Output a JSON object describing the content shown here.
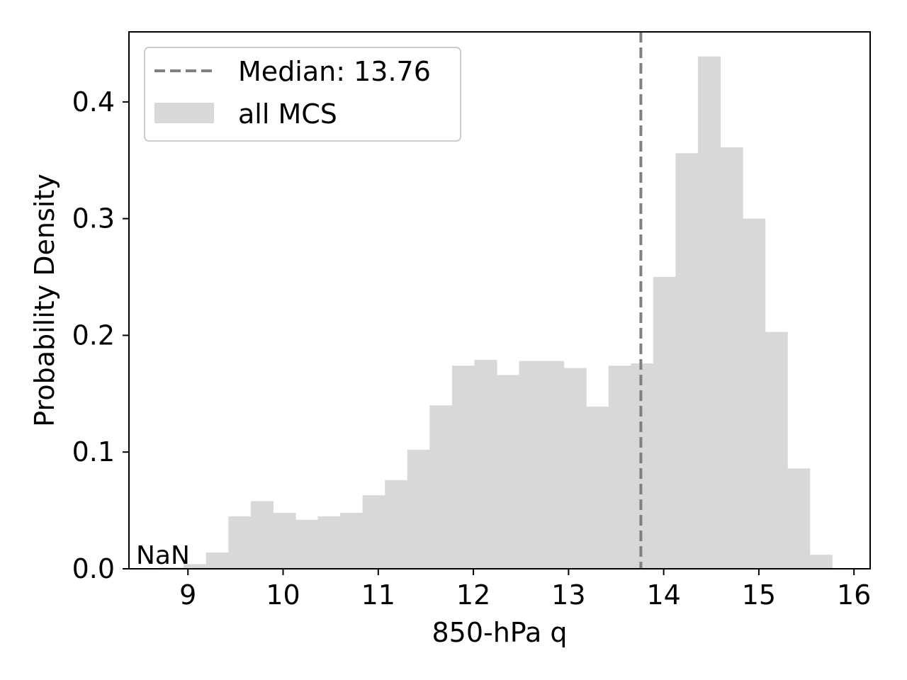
{
  "chart_data": {
    "type": "bar",
    "title": "",
    "xlabel": "850-hPa q",
    "ylabel": "Probability Density",
    "xlim": [
      8.38,
      16.17
    ],
    "ylim": [
      0,
      0.46
    ],
    "x_ticks": [
      9,
      10,
      11,
      12,
      13,
      14,
      15,
      16
    ],
    "x_tick_labels": [
      "9",
      "10",
      "11",
      "12",
      "13",
      "14",
      "15",
      "16"
    ],
    "y_ticks": [
      0.0,
      0.1,
      0.2,
      0.3,
      0.4
    ],
    "y_tick_labels": [
      "0.0",
      "0.1",
      "0.2",
      "0.3",
      "0.4"
    ],
    "bin_edges": [
      8.72,
      8.955,
      9.19,
      9.425,
      9.66,
      9.895,
      10.13,
      10.365,
      10.6,
      10.835,
      11.07,
      11.305,
      11.54,
      11.775,
      12.01,
      12.245,
      12.48,
      12.715,
      12.95,
      13.185,
      13.42,
      13.655,
      13.89,
      14.125,
      14.36,
      14.595,
      14.83,
      15.065,
      15.3,
      15.535,
      15.77
    ],
    "values": [
      0.001,
      0.004,
      0.014,
      0.045,
      0.058,
      0.048,
      0.042,
      0.045,
      0.048,
      0.063,
      0.076,
      0.102,
      0.14,
      0.174,
      0.179,
      0.166,
      0.178,
      0.178,
      0.172,
      0.139,
      0.174,
      0.176,
      0.25,
      0.356,
      0.439,
      0.361,
      0.3,
      0.203,
      0.086,
      0.012
    ],
    "series": [
      {
        "name": "all MCS",
        "color": "#d8d8d8"
      }
    ],
    "median": {
      "value": 13.76,
      "label": "Median: 13.76",
      "color": "#808080",
      "style": "dashed"
    },
    "legend": {
      "position": "top-left",
      "entries": [
        "Median: 13.76",
        "all MCS"
      ]
    },
    "annotation": "NaN",
    "grid": false
  }
}
